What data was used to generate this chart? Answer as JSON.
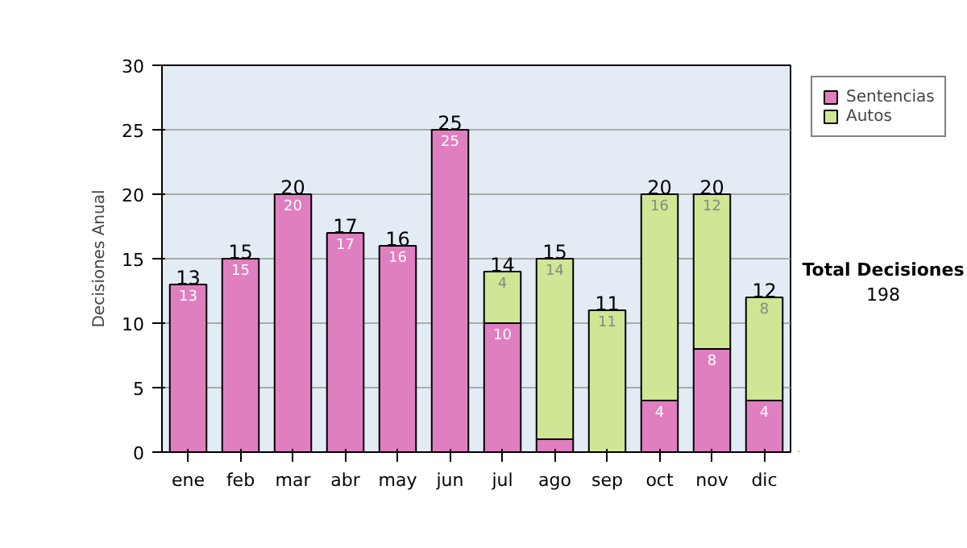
{
  "chart_data": {
    "type": "bar",
    "stacked": true,
    "ylabel": "Decisiones Anual",
    "categories": [
      "ene",
      "feb",
      "mar",
      "abr",
      "may",
      "jun",
      "jul",
      "ago",
      "sep",
      "oct",
      "nov",
      "dic"
    ],
    "series": [
      {
        "name": "Sentencias",
        "color": "#e07fc0",
        "values": [
          13,
          15,
          20,
          17,
          16,
          25,
          10,
          1,
          0,
          4,
          8,
          4
        ],
        "value_labels": [
          "13",
          "15",
          "20",
          "17",
          "16",
          "25",
          "10",
          null,
          null,
          "4",
          "8",
          "4"
        ]
      },
      {
        "name": "Autos",
        "color": "#cfe695",
        "values": [
          0,
          0,
          0,
          0,
          0,
          0,
          4,
          14,
          11,
          16,
          12,
          8
        ],
        "value_labels": [
          null,
          null,
          null,
          null,
          null,
          null,
          "4",
          "14",
          "11",
          "16",
          "12",
          "8"
        ]
      }
    ],
    "totals": [
      "13",
      "15",
      "20",
      "17",
      "16",
      "25",
      "14",
      "15",
      "11",
      "20",
      "20",
      "12"
    ],
    "ylim": [
      0,
      30
    ],
    "yticks": [
      0,
      5,
      10,
      15,
      20,
      25,
      30
    ],
    "grid": "y",
    "legend": "right",
    "annotations": [
      "Total Decisiones",
      "198"
    ]
  }
}
